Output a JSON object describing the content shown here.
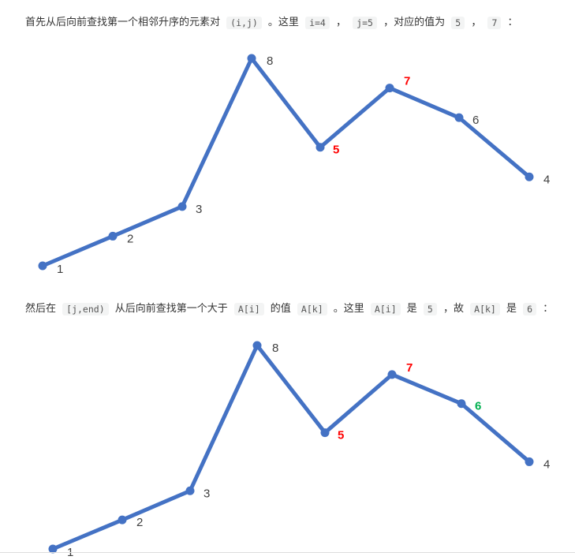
{
  "para1": {
    "t1": "首先从后向前查找第一个相邻升序的元素对",
    "c1": "(i,j)",
    "t2": "。这里",
    "c2": "i=4",
    "t3": "，",
    "c3": "j=5",
    "t4": "，对应的值为",
    "c4": "5",
    "t5": "，",
    "c5": "7",
    "t6": "："
  },
  "para2": {
    "t1": "然后在",
    "c1": "[j,end)",
    "t2": "从后向前查找第一个大于",
    "c2": "A[i]",
    "t3": "的值",
    "c3": "A[k]",
    "t4": "。这里",
    "c4": "A[i]",
    "t5": "是",
    "c5": "5",
    "t6": "，故",
    "c6": "A[k]",
    "t7": "是",
    "c7": "6",
    "t8": "："
  },
  "colors": {
    "line": "#4472c4",
    "label": "#404040",
    "highlight_red": "#ff0000",
    "highlight_green": "#00b050"
  },
  "chart_data": [
    {
      "type": "line",
      "x": [
        1,
        2,
        3,
        4,
        5,
        6,
        7,
        8
      ],
      "values": [
        1,
        2,
        3,
        8,
        5,
        7,
        6,
        4
      ],
      "point_labels": [
        "1",
        "2",
        "3",
        "8",
        "5",
        "7",
        "6",
        "4"
      ],
      "highlight": {
        "4": "red",
        "5": "red"
      },
      "ylim": [
        1,
        8
      ],
      "grid": false,
      "legend": "none"
    },
    {
      "type": "line",
      "x": [
        1,
        2,
        3,
        4,
        5,
        6,
        7,
        8
      ],
      "values": [
        1,
        2,
        3,
        8,
        5,
        7,
        6,
        4
      ],
      "point_labels": [
        "1",
        "2",
        "3",
        "8",
        "5",
        "7",
        "6",
        "4"
      ],
      "highlight": {
        "4": "red",
        "5": "red",
        "6": "green"
      },
      "ylim": [
        1,
        8
      ],
      "grid": false,
      "legend": "none"
    }
  ]
}
